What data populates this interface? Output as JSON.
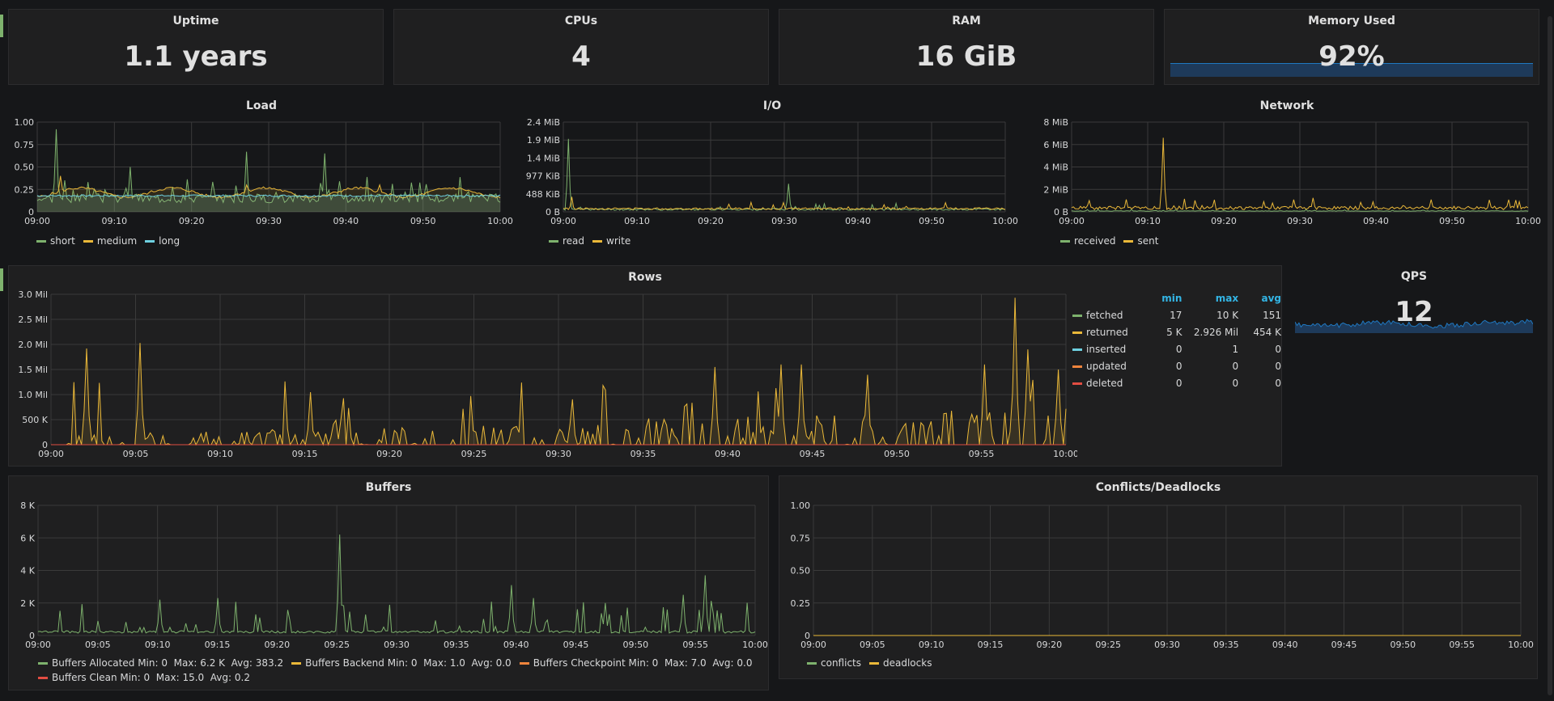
{
  "stats": {
    "uptime": {
      "title": "Uptime",
      "value": "1.1 years"
    },
    "cpus": {
      "title": "CPUs",
      "value": "4"
    },
    "ram": {
      "title": "RAM",
      "value": "16 GiB"
    },
    "memory": {
      "title": "Memory Used",
      "value": "92%",
      "spark_color": "#1f78c1"
    },
    "qps": {
      "title": "QPS",
      "value": "12",
      "spark_color": "#1f78c1"
    }
  },
  "colors": {
    "green": "#7eb26d",
    "yellow": "#eab839",
    "cyan": "#6ed0e0",
    "orange": "#ef843c",
    "red": "#e24d42",
    "blue": "#33b5e5"
  },
  "rows_legend": {
    "headers": [
      "min",
      "max",
      "avg"
    ],
    "rows": [
      {
        "name": "fetched",
        "color": "#7eb26d",
        "min": "17",
        "max": "10 K",
        "avg": "151"
      },
      {
        "name": "returned",
        "color": "#eab839",
        "min": "5 K",
        "max": "2.926 Mil",
        "avg": "454 K"
      },
      {
        "name": "inserted",
        "color": "#6ed0e0",
        "min": "0",
        "max": "1",
        "avg": "0"
      },
      {
        "name": "updated",
        "color": "#ef843c",
        "min": "0",
        "max": "0",
        "avg": "0"
      },
      {
        "name": "deleted",
        "color": "#e24d42",
        "min": "0",
        "max": "0",
        "avg": "0"
      }
    ]
  },
  "chart_data": [
    {
      "id": "load",
      "type": "line",
      "title": "Load",
      "x": [
        "09:00",
        "09:10",
        "09:20",
        "09:30",
        "09:40",
        "09:50",
        "10:00"
      ],
      "y_ticks": [
        "0",
        "0.25",
        "0.50",
        "0.75",
        "1.00"
      ],
      "ylim": [
        0,
        1
      ],
      "series": [
        {
          "name": "short",
          "color": "#7eb26d",
          "pattern": "spiky",
          "base": 0.17,
          "amp": 0.6,
          "seed": 3,
          "peaks": [
            [
              0.04,
              0.92
            ],
            [
              0.45,
              0.67
            ],
            [
              0.62,
              0.65
            ],
            [
              0.2,
              0.5
            ]
          ]
        },
        {
          "name": "medium",
          "color": "#eab839",
          "pattern": "smooth",
          "base": 0.2,
          "amp": 0.1,
          "seed": 5,
          "peaks": [
            [
              0.05,
              0.4
            ],
            [
              0.45,
              0.3
            ],
            [
              0.74,
              0.3
            ]
          ]
        },
        {
          "name": "long",
          "color": "#6ed0e0",
          "pattern": "flat",
          "base": 0.17,
          "amp": 0.02,
          "seed": 7,
          "peaks": []
        }
      ]
    },
    {
      "id": "io",
      "type": "line",
      "title": "I/O",
      "x": [
        "09:00",
        "09:10",
        "09:20",
        "09:30",
        "09:40",
        "09:50",
        "10:00"
      ],
      "y_ticks": [
        "0 B",
        "488 KiB",
        "977 KiB",
        "1.4 MiB",
        "1.9 MiB",
        "2.4 MiB"
      ],
      "ylim": [
        0,
        2.4
      ],
      "series": [
        {
          "name": "read",
          "color": "#7eb26d",
          "pattern": "low",
          "base": 0.04,
          "amp": 0.05,
          "seed": 11,
          "peaks": [
            [
              0.01,
              1.95
            ],
            [
              0.51,
              0.75
            ]
          ]
        },
        {
          "name": "write",
          "color": "#eab839",
          "pattern": "low",
          "base": 0.06,
          "amp": 0.05,
          "seed": 13,
          "peaks": [
            [
              0.02,
              0.4
            ]
          ]
        }
      ]
    },
    {
      "id": "network",
      "type": "line",
      "title": "Network",
      "x": [
        "09:00",
        "09:10",
        "09:20",
        "09:30",
        "09:40",
        "09:50",
        "10:00"
      ],
      "y_ticks": [
        "0 B",
        "2 MiB",
        "4 MiB",
        "6 MiB",
        "8 MiB"
      ],
      "ylim": [
        0,
        8
      ],
      "series": [
        {
          "name": "received",
          "color": "#7eb26d",
          "pattern": "low",
          "base": 0.05,
          "amp": 0.05,
          "seed": 17,
          "peaks": []
        },
        {
          "name": "sent",
          "color": "#eab839",
          "pattern": "low",
          "base": 0.2,
          "amp": 0.3,
          "seed": 19,
          "peaks": [
            [
              0.2,
              6.6
            ],
            [
              0.04,
              1.0
            ],
            [
              0.12,
              1.1
            ],
            [
              0.66,
              0.9
            ],
            [
              0.98,
              0.9
            ]
          ]
        }
      ]
    },
    {
      "id": "rows",
      "type": "line",
      "title": "Rows",
      "x": [
        "09:00",
        "09:05",
        "09:10",
        "09:15",
        "09:20",
        "09:25",
        "09:30",
        "09:35",
        "09:40",
        "09:45",
        "09:50",
        "09:55",
        "10:00"
      ],
      "y_ticks": [
        "0",
        "500 K",
        "1.0 Mil",
        "1.5 Mil",
        "2.0 Mil",
        "2.5 Mil",
        "3.0 Mil"
      ],
      "ylim": [
        0,
        3.0
      ],
      "series": [
        {
          "name": "returned",
          "color": "#eab839",
          "pattern": "bursty",
          "base": 0.0,
          "amp": 0.7,
          "seed": 23,
          "peaks": [
            [
              0.035,
              1.92
            ],
            [
              0.088,
              2.03
            ],
            [
              0.654,
              1.55
            ],
            [
              0.72,
              1.6
            ],
            [
              0.74,
              1.6
            ],
            [
              0.92,
              1.6
            ],
            [
              0.951,
              2.93
            ],
            [
              0.963,
              1.9
            ],
            [
              0.993,
              1.5
            ]
          ]
        },
        {
          "name": "fetched",
          "color": "#7eb26d",
          "pattern": "flat",
          "base": 0.0,
          "amp": 0.0,
          "seed": 29,
          "peaks": []
        },
        {
          "name": "deleted",
          "color": "#e24d42",
          "pattern": "flat",
          "base": 0.0,
          "amp": 0.0,
          "seed": 31,
          "peaks": []
        }
      ]
    },
    {
      "id": "buffers",
      "type": "line",
      "title": "Buffers",
      "x": [
        "09:00",
        "09:05",
        "09:10",
        "09:15",
        "09:20",
        "09:25",
        "09:30",
        "09:35",
        "09:40",
        "09:45",
        "09:50",
        "09:55",
        "10:00"
      ],
      "y_ticks": [
        "0",
        "2 K",
        "4 K",
        "6 K",
        "8 K"
      ],
      "ylim": [
        0,
        8
      ],
      "series": [
        {
          "name": "Buffers Allocated",
          "color": "#7eb26d",
          "pattern": "spiky",
          "base": 0.25,
          "amp": 0.6,
          "seed": 37,
          "peaks": [
            [
              0.42,
              6.2
            ],
            [
              0.17,
              2.2
            ],
            [
              0.25,
              2.3
            ],
            [
              0.66,
              3.1
            ],
            [
              0.69,
              2.3
            ],
            [
              0.79,
              2.0
            ],
            [
              0.9,
              2.5
            ],
            [
              0.93,
              3.7
            ]
          ]
        }
      ]
    },
    {
      "id": "conflicts",
      "type": "line",
      "title": "Conflicts/Deadlocks",
      "x": [
        "09:00",
        "09:05",
        "09:10",
        "09:15",
        "09:20",
        "09:25",
        "09:30",
        "09:35",
        "09:40",
        "09:45",
        "09:50",
        "09:55",
        "10:00"
      ],
      "y_ticks": [
        "0",
        "0.25",
        "0.50",
        "0.75",
        "1.00"
      ],
      "ylim": [
        0,
        1
      ],
      "series": [
        {
          "name": "conflicts",
          "color": "#7eb26d",
          "pattern": "flat",
          "base": 0,
          "amp": 0,
          "seed": 41,
          "peaks": []
        },
        {
          "name": "deadlocks",
          "color": "#eab839",
          "pattern": "flat",
          "base": 0,
          "amp": 0,
          "seed": 43,
          "peaks": []
        }
      ]
    }
  ],
  "legends": {
    "load": [
      "short",
      "medium",
      "long"
    ],
    "io": [
      "read",
      "write"
    ],
    "network": [
      "received",
      "sent"
    ],
    "buffers_line1": [
      {
        "name": "Buffers Allocated",
        "color": "#7eb26d",
        "stats": "Min: 0  Max: 6.2 K  Avg: 383.2"
      },
      {
        "name": "Buffers Backend",
        "color": "#eab839",
        "stats": "Min: 0  Max: 1.0  Avg: 0.0"
      },
      {
        "name": "Buffers Checkpoint",
        "color": "#ef843c",
        "stats": "Min: 0  Max: 7.0  Avg: 0.0"
      }
    ],
    "buffers_line2": [
      {
        "name": "Buffers Clean",
        "color": "#e24d42",
        "stats": "Min: 0  Max: 15.0  Avg: 0.2"
      }
    ],
    "conflicts": [
      "conflicts",
      "deadlocks"
    ]
  }
}
